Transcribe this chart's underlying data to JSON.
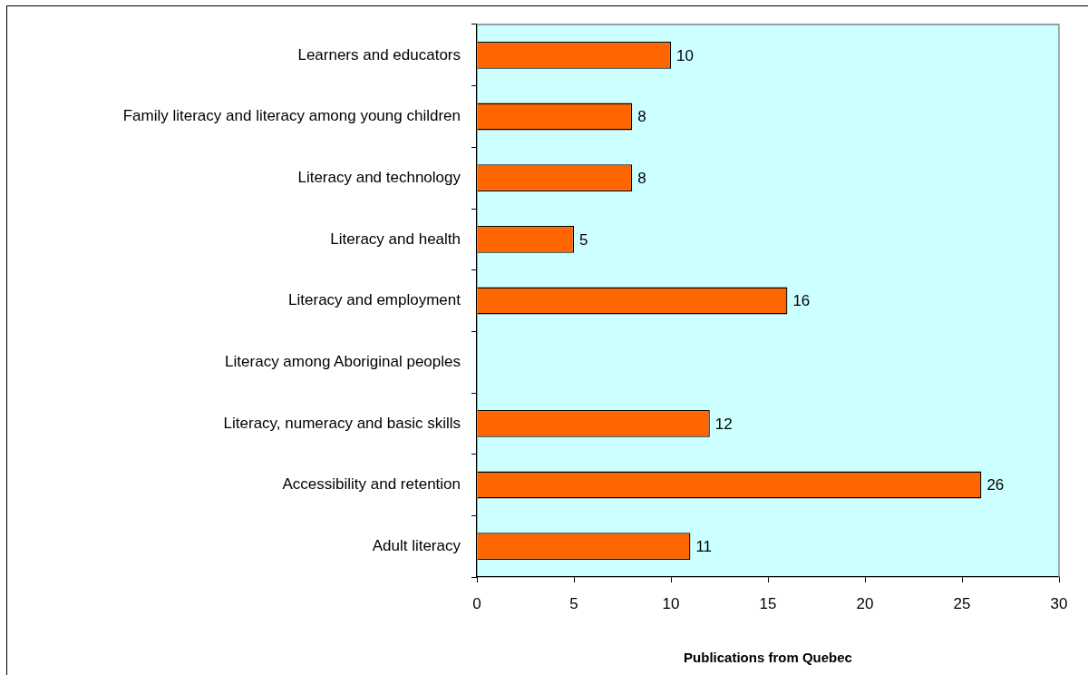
{
  "chart_data": {
    "type": "bar",
    "orientation": "horizontal",
    "categories": [
      "Learners and educators",
      "Family literacy and literacy among young children",
      "Literacy and technology",
      "Literacy and health",
      "Literacy and employment",
      "Literacy among Aboriginal peoples",
      "Literacy, numeracy and basic skills",
      "Accessibility and retention",
      "Adult literacy"
    ],
    "values": [
      10,
      8,
      8,
      5,
      16,
      null,
      12,
      26,
      11
    ],
    "color": "#ff6600",
    "xlabel": "Publications from Quebec",
    "xlim": [
      0,
      30
    ],
    "xticks": [
      0,
      5,
      10,
      15,
      20,
      25,
      30
    ],
    "grid": false,
    "legend": false,
    "data_labels": true
  }
}
